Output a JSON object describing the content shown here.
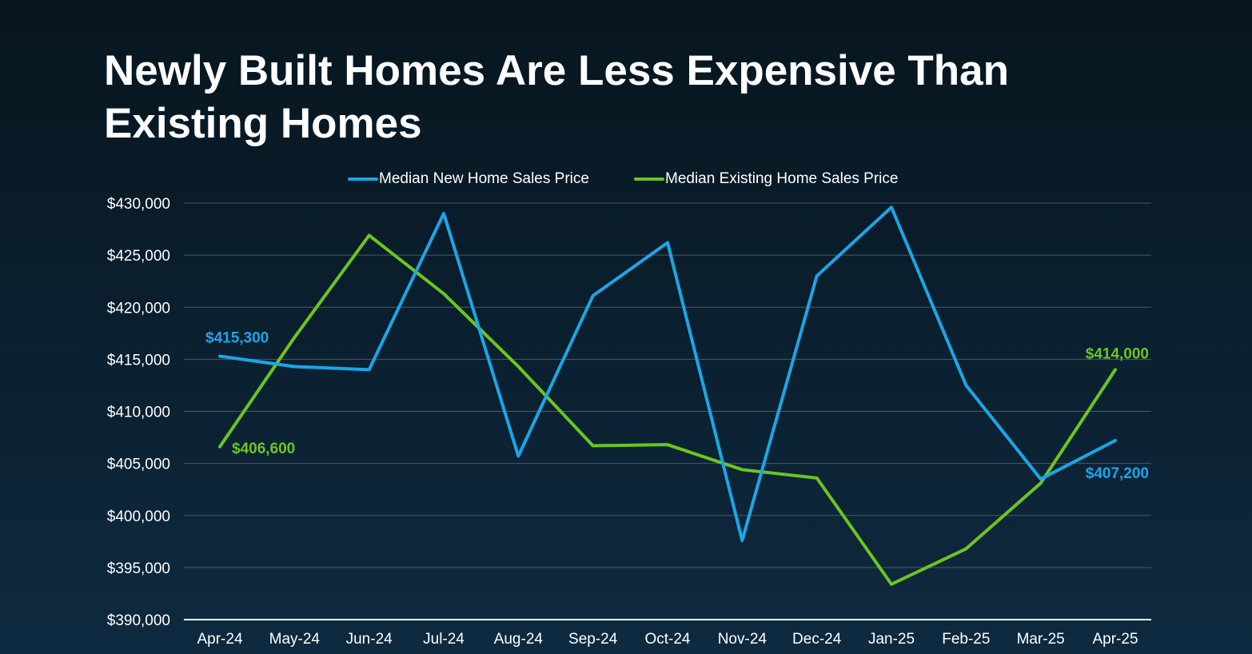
{
  "chart_data": {
    "type": "line",
    "title": "Newly Built Homes Are Less Expensive Than Existing Homes",
    "categories": [
      "Apr-24",
      "May-24",
      "Jun-24",
      "Jul-24",
      "Aug-24",
      "Sep-24",
      "Oct-24",
      "Nov-24",
      "Dec-24",
      "Jan-25",
      "Feb-25",
      "Mar-25",
      "Apr-25"
    ],
    "ylim": [
      390000,
      430000
    ],
    "yticks": [
      390000,
      395000,
      400000,
      405000,
      410000,
      415000,
      420000,
      425000,
      430000
    ],
    "ytick_labels": [
      "$390,000",
      "$395,000",
      "$400,000",
      "$405,000",
      "$410,000",
      "$415,000",
      "$420,000",
      "$425,000",
      "$430,000"
    ],
    "grid": true,
    "legend_position": "top-center",
    "series": [
      {
        "name": "Median New Home Sales Price",
        "color": "#1ba6e6",
        "values": [
          415300,
          414300,
          414000,
          429000,
          405700,
          421100,
          426200,
          397600,
          423000,
          429600,
          412500,
          403500,
          407200
        ]
      },
      {
        "name": "Median Existing Home Sales Price",
        "color": "#6cc51f",
        "values": [
          406600,
          417100,
          426900,
          421300,
          414300,
          406700,
          406800,
          404400,
          403600,
          393400,
          396800,
          403100,
          414000
        ]
      }
    ],
    "annotations": [
      {
        "series": 0,
        "index": 0,
        "text": "$415,300"
      },
      {
        "series": 1,
        "index": 0,
        "text": "$406,600"
      },
      {
        "series": 1,
        "index": 12,
        "text": "$414,000"
      },
      {
        "series": 0,
        "index": 12,
        "text": "$407,200"
      }
    ]
  }
}
